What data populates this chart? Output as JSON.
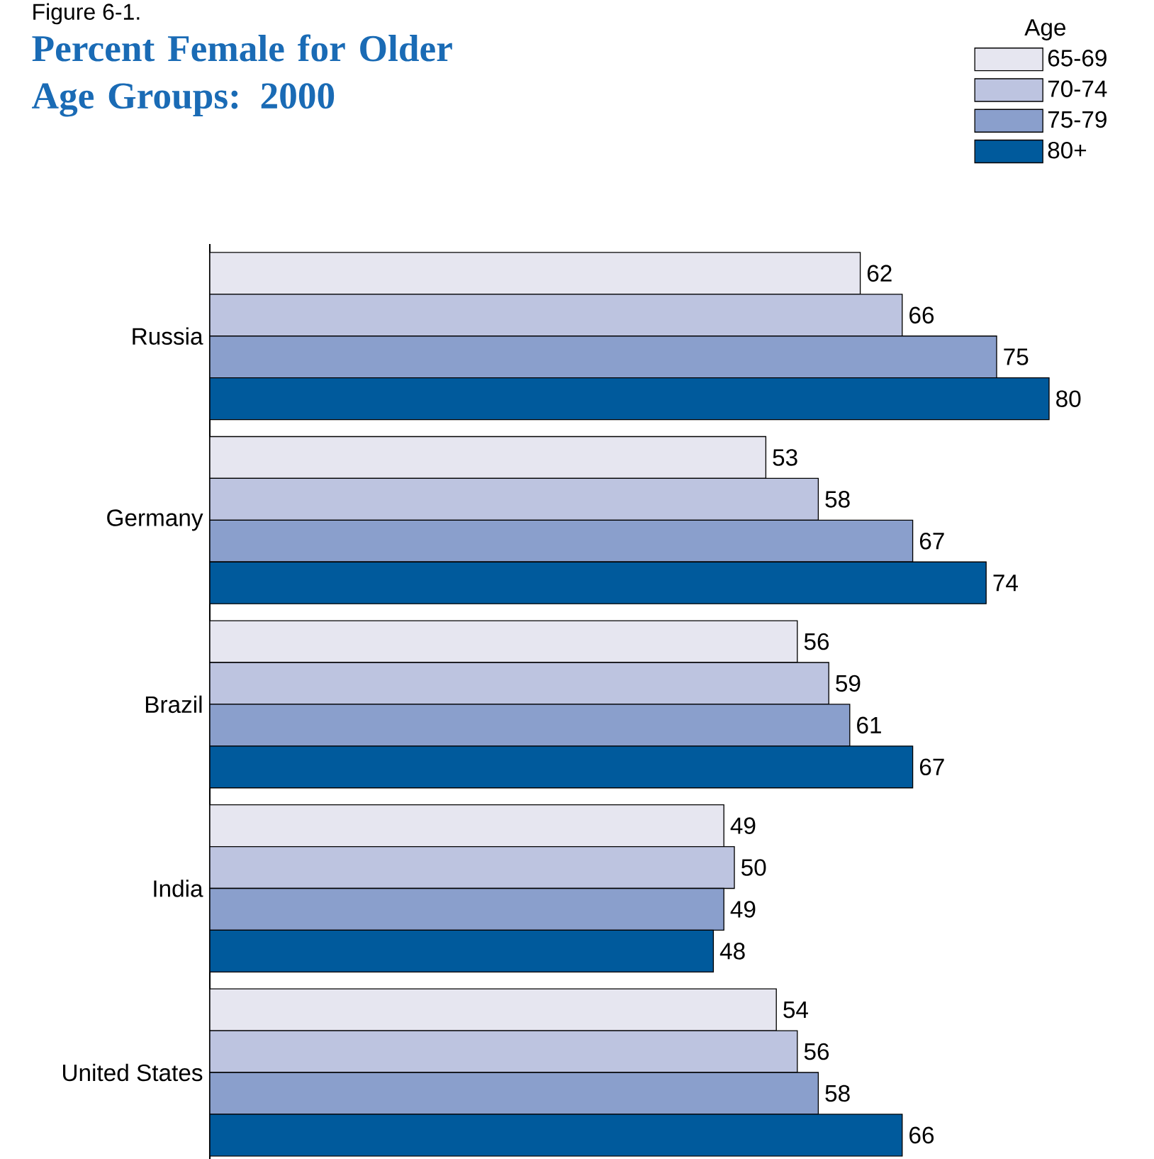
{
  "chart_data": {
    "type": "bar",
    "orientation": "horizontal",
    "title": "Percent Female for Older Age Groups:  2000",
    "annotations": [
      "Figure 6-1."
    ],
    "legend_title": "Age",
    "legend": "top right",
    "categories": [
      "Russia",
      "Germany",
      "Brazil",
      "India",
      "United States"
    ],
    "data_labels": true,
    "series": [
      {
        "name": "65-69",
        "color": "#e6e6f0",
        "values": [
          62,
          53,
          56,
          49,
          54
        ]
      },
      {
        "name": "70-74",
        "color": "#bdc4e0",
        "values": [
          66,
          58,
          59,
          50,
          56
        ]
      },
      {
        "name": "75-79",
        "color": "#8a9fcc",
        "values": [
          75,
          67,
          61,
          49,
          58
        ]
      },
      {
        "name": "80+",
        "color": "#005a9c",
        "values": [
          80,
          74,
          67,
          48,
          66
        ]
      }
    ]
  }
}
